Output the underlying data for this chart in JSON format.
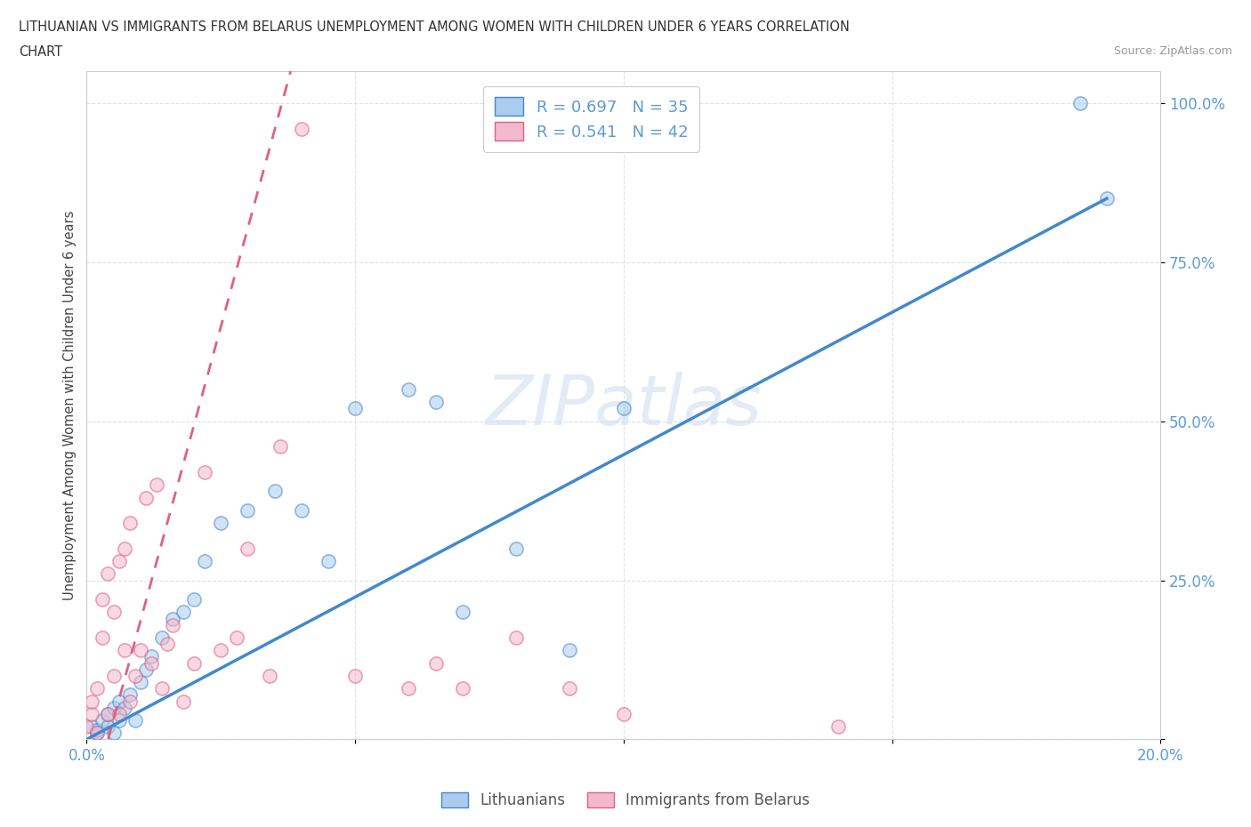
{
  "title_line1": "LITHUANIAN VS IMMIGRANTS FROM BELARUS UNEMPLOYMENT AMONG WOMEN WITH CHILDREN UNDER 6 YEARS CORRELATION",
  "title_line2": "CHART",
  "source": "Source: ZipAtlas.com",
  "ylabel": "Unemployment Among Women with Children Under 6 years",
  "xlim": [
    0.0,
    0.2
  ],
  "ylim": [
    0.0,
    1.05
  ],
  "blue_color": "#aaccee",
  "pink_color": "#f4b8cc",
  "blue_line_color": "#4488cc",
  "pink_line_color": "#e06080",
  "watermark_color": "#d0dff0",
  "legend_text1": "R = 0.697   N = 35",
  "legend_text2": "R = 0.541   N = 42",
  "tick_color": "#5b9bd5",
  "grid_color": "#d8dfe8",
  "title_color": "#333333",
  "ylabel_color": "#444444",
  "blue_scatter_x": [
    0.001,
    0.002,
    0.002,
    0.003,
    0.004,
    0.004,
    0.005,
    0.005,
    0.006,
    0.006,
    0.007,
    0.008,
    0.009,
    0.01,
    0.011,
    0.012,
    0.014,
    0.016,
    0.018,
    0.02,
    0.022,
    0.025,
    0.03,
    0.035,
    0.04,
    0.045,
    0.05,
    0.06,
    0.065,
    0.07,
    0.08,
    0.09,
    0.1,
    0.185,
    0.19
  ],
  "blue_scatter_y": [
    0.02,
    0.01,
    0.015,
    0.03,
    0.02,
    0.04,
    0.01,
    0.05,
    0.03,
    0.06,
    0.05,
    0.07,
    0.03,
    0.09,
    0.11,
    0.13,
    0.16,
    0.19,
    0.2,
    0.22,
    0.28,
    0.34,
    0.36,
    0.39,
    0.36,
    0.28,
    0.52,
    0.55,
    0.53,
    0.2,
    0.3,
    0.14,
    0.52,
    1.0,
    0.85
  ],
  "pink_scatter_x": [
    0.0,
    0.001,
    0.001,
    0.002,
    0.002,
    0.003,
    0.003,
    0.004,
    0.004,
    0.005,
    0.005,
    0.006,
    0.006,
    0.007,
    0.007,
    0.008,
    0.008,
    0.009,
    0.01,
    0.011,
    0.012,
    0.013,
    0.014,
    0.015,
    0.016,
    0.018,
    0.02,
    0.022,
    0.025,
    0.028,
    0.03,
    0.034,
    0.036,
    0.04,
    0.05,
    0.06,
    0.065,
    0.07,
    0.08,
    0.09,
    0.1,
    0.14
  ],
  "pink_scatter_y": [
    0.02,
    0.04,
    0.06,
    0.08,
    0.01,
    0.16,
    0.22,
    0.26,
    0.04,
    0.2,
    0.1,
    0.28,
    0.04,
    0.3,
    0.14,
    0.34,
    0.06,
    0.1,
    0.14,
    0.38,
    0.12,
    0.4,
    0.08,
    0.15,
    0.18,
    0.06,
    0.12,
    0.42,
    0.14,
    0.16,
    0.3,
    0.1,
    0.46,
    0.96,
    0.1,
    0.08,
    0.12,
    0.08,
    0.16,
    0.08,
    0.04,
    0.02
  ],
  "blue_line_x0": 0.0,
  "blue_line_x1": 0.19,
  "blue_line_y0": 0.0,
  "blue_line_y1": 0.85,
  "pink_line_x0": 0.004,
  "pink_line_x1": 0.038,
  "pink_line_y0": 0.0,
  "pink_line_y1": 1.05,
  "scatter_size": 120,
  "scatter_alpha": 0.55,
  "scatter_lw": 1.2
}
